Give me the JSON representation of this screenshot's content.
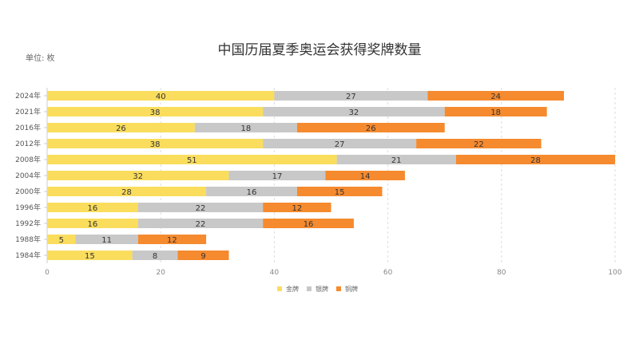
{
  "chart_data": {
    "type": "bar",
    "orientation": "horizontal",
    "stacked": true,
    "title": "中国历届夏季奥运会获得奖牌数量",
    "unit_label": "单位: 枚",
    "categories": [
      "2024年",
      "2021年",
      "2016年",
      "2012年",
      "2008年",
      "2004年",
      "2000年",
      "1996年",
      "1992年",
      "1988年",
      "1984年"
    ],
    "series": [
      {
        "name": "金牌",
        "color": "#FADD5D",
        "values": [
          40,
          38,
          26,
          38,
          51,
          32,
          28,
          16,
          16,
          5,
          15
        ]
      },
      {
        "name": "银牌",
        "color": "#C8C8C8",
        "values": [
          27,
          32,
          18,
          27,
          21,
          17,
          16,
          22,
          22,
          11,
          8
        ]
      },
      {
        "name": "铜牌",
        "color": "#F58A2E",
        "values": [
          24,
          18,
          26,
          22,
          28,
          14,
          15,
          12,
          16,
          12,
          9
        ]
      }
    ],
    "xlim": [
      0,
      100
    ],
    "xticks": [
      0,
      20,
      40,
      60,
      80,
      100
    ],
    "grid": true,
    "legend_position": "bottom-center"
  }
}
